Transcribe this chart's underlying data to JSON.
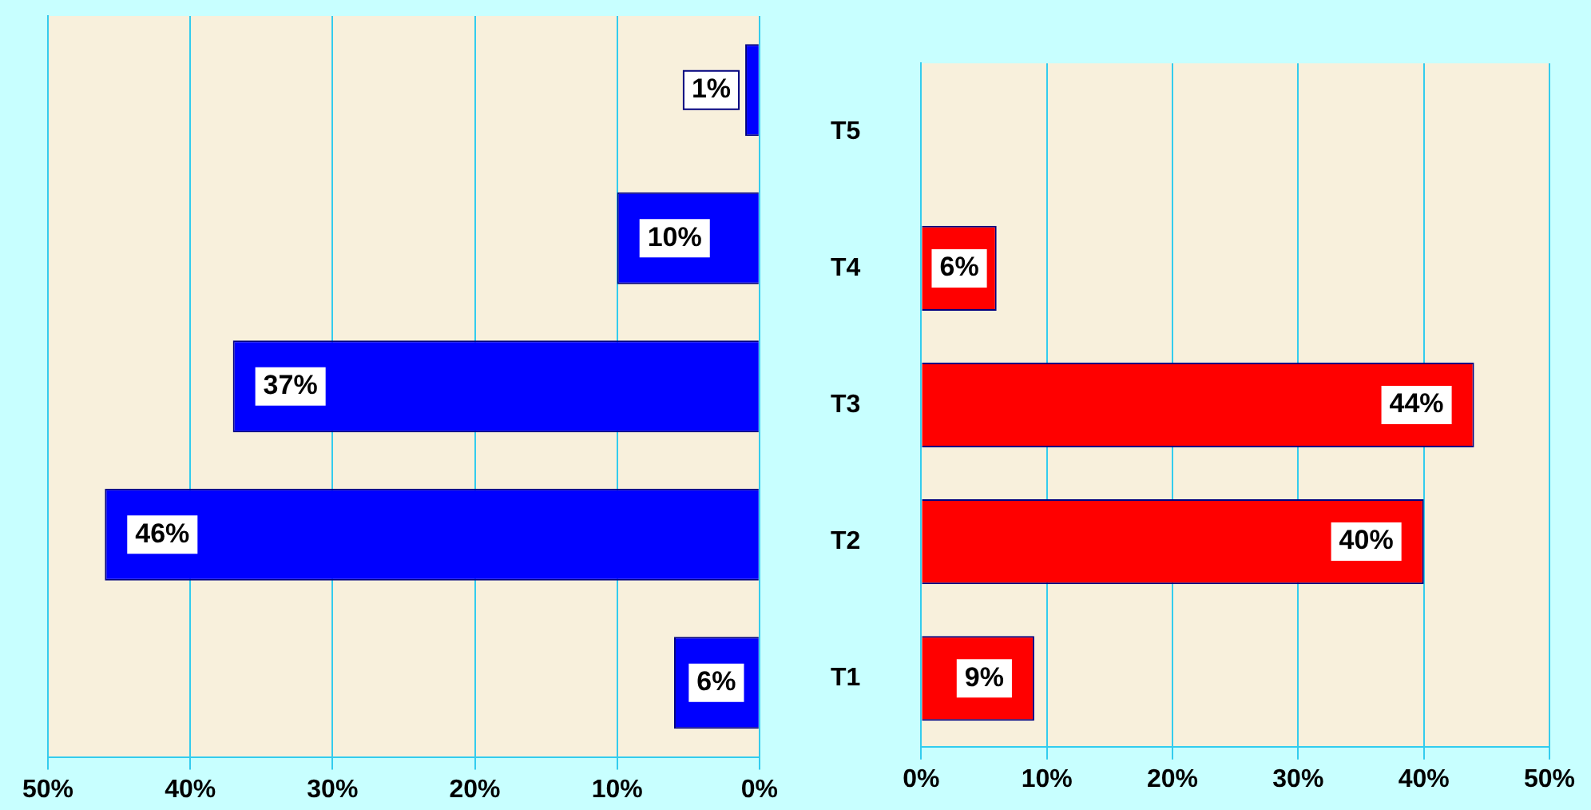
{
  "chart_data": [
    {
      "type": "bar",
      "orientation": "horizontal",
      "categories": [
        null,
        null,
        null,
        null,
        null
      ],
      "values": [
        1,
        10,
        37,
        46,
        6
      ],
      "color": "#0000ff",
      "data_labels": false,
      "value_labels": [
        "1%",
        "10%",
        "37%",
        "46%",
        "6%"
      ],
      "xlim": [
        50,
        0
      ],
      "xticks": [
        {
          "value": 50,
          "label": "50%"
        },
        {
          "value": 40,
          "label": "40%"
        },
        {
          "value": 30,
          "label": "30%"
        },
        {
          "value": 20,
          "label": "20%"
        },
        {
          "value": 10,
          "label": "10%"
        },
        {
          "value": 0,
          "label": "0%"
        }
      ],
      "grid": "x",
      "legend": false,
      "tick_labels": "x"
    },
    {
      "type": "bar",
      "orientation": "horizontal",
      "categories": [
        "T5",
        "T4",
        "T3",
        "T2",
        "T1"
      ],
      "values": [
        0,
        6,
        44,
        40,
        9
      ],
      "color": "#ff0000",
      "value_labels": [
        null,
        "6%",
        "44%",
        "40%",
        "9%"
      ],
      "xlim": [
        0,
        50
      ],
      "xticks": [
        {
          "value": 0,
          "label": "0%"
        },
        {
          "value": 10,
          "label": "10%"
        },
        {
          "value": 20,
          "label": "20%"
        },
        {
          "value": 30,
          "label": "30%"
        },
        {
          "value": 40,
          "label": "40%"
        },
        {
          "value": 50,
          "label": "50%"
        }
      ],
      "grid": "x",
      "legend": false
    }
  ]
}
